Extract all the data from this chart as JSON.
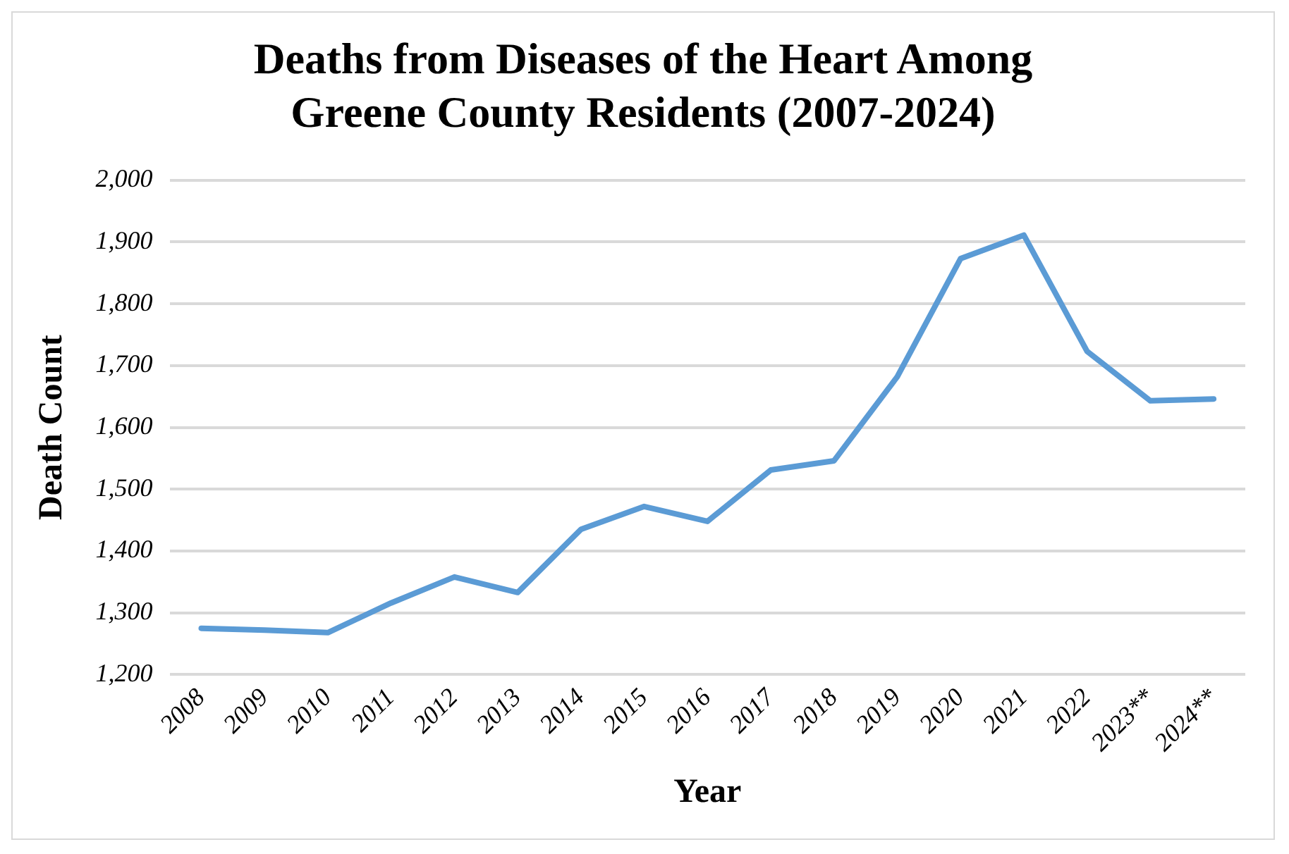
{
  "chart_data": {
    "type": "line",
    "title": "Deaths from Diseases of the Heart Among Greene County Residents (2007-2024)",
    "xlabel": "Year",
    "ylabel": "Death Count",
    "categories": [
      "2008",
      "2009",
      "2010",
      "2011",
      "2012",
      "2013",
      "2014",
      "2015",
      "2016",
      "2017",
      "2018",
      "2019",
      "2020",
      "2021",
      "2022",
      "2023**",
      "2024**"
    ],
    "series": [
      {
        "color": "#5b9bd5",
        "values": [
          1275,
          1272,
          1268,
          1316,
          1358,
          1333,
          1435,
          1472,
          1448,
          1531,
          1546,
          1682,
          1873,
          1911,
          1723,
          1643,
          1646
        ]
      }
    ],
    "ylim": [
      1200,
      2000
    ],
    "yticks": [
      {
        "value": 1200,
        "label": "1,200"
      },
      {
        "value": 1300,
        "label": "1,300"
      },
      {
        "value": 1400,
        "label": "1,400"
      },
      {
        "value": 1500,
        "label": "1,500"
      },
      {
        "value": 1600,
        "label": "1,600"
      },
      {
        "value": 1700,
        "label": "1,700"
      },
      {
        "value": 1800,
        "label": "1,800"
      },
      {
        "value": 1900,
        "label": "1,900"
      },
      {
        "value": 2000,
        "label": "2,000"
      }
    ],
    "grid": "y",
    "legend": false,
    "marker": "none",
    "line_style": "solid"
  }
}
